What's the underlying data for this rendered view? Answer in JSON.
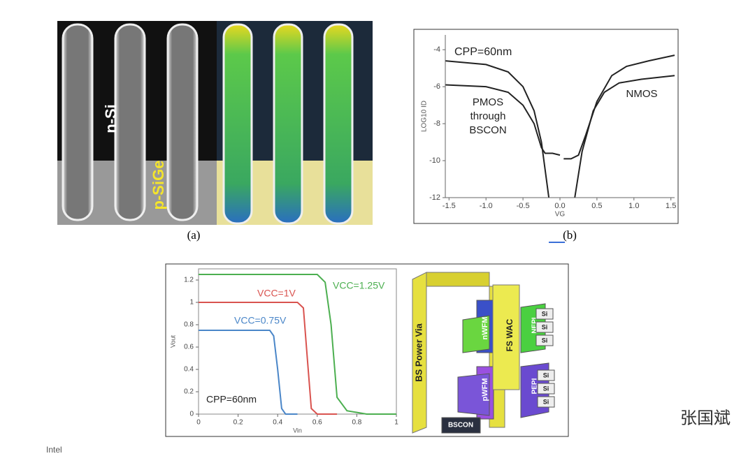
{
  "panel_a": {
    "labels": [
      "n-Si",
      "p-SiGe"
    ],
    "caption": "(a)"
  },
  "panel_b": {
    "caption": "(b)",
    "chart": {
      "type": "line",
      "x_label": "VG",
      "y_label": "LOG10 ID",
      "annotations": [
        "CPP=60nm",
        "PMOS",
        "through",
        "BSCON",
        "NMOS"
      ],
      "xlim": [
        -1.55,
        1.55
      ],
      "ylim": [
        -12,
        -3.2
      ],
      "xticks": [
        -1.5,
        {
          "value": -1,
          "label": "-1.0"
        },
        -0.5,
        {
          "value": 0,
          "label": "0.0"
        },
        0.5,
        {
          "value": 1,
          "label": "1.0"
        },
        1.5
      ],
      "yticks": [
        -4,
        -6,
        -8,
        -10,
        -12
      ],
      "series": [
        {
          "color": "#222222",
          "x": [
            -1.55,
            -1.0,
            -0.7,
            -0.5,
            -0.35,
            -0.25,
            -0.15,
            0.0,
            0.2,
            0.3,
            0.45,
            0.6,
            0.8,
            1.1,
            1.55
          ],
          "values": [
            -4.6,
            -4.8,
            -5.2,
            -6.0,
            -7.3,
            -9.0,
            -12,
            null,
            -12,
            -9.5,
            -7.3,
            -6.3,
            -5.8,
            -5.6,
            -5.4
          ]
        },
        {
          "color": "#222222",
          "x": [
            -1.55,
            -1.0,
            -0.7,
            -0.5,
            -0.35,
            -0.25,
            -0.2,
            -0.1,
            0.0,
            0.02,
            0.05,
            0.15,
            0.25,
            0.35,
            0.5,
            0.7,
            0.9,
            1.2,
            1.55
          ],
          "values": [
            -5.9,
            -6.0,
            -6.3,
            -7.0,
            -8.0,
            -9.3,
            -9.6,
            -9.6,
            -9.7,
            null,
            -9.9,
            -9.9,
            -9.7,
            -8.6,
            -6.8,
            -5.4,
            -4.9,
            -4.6,
            -4.3
          ]
        }
      ]
    }
  },
  "panel_c": {
    "chart": {
      "type": "line",
      "x_label": "Vin",
      "y_label": "Vout",
      "annotations": [
        "CPP=60nm"
      ],
      "xlim": [
        0,
        1
      ],
      "ylim": [
        0,
        1.3
      ],
      "xticks": [
        0,
        0.2,
        0.4,
        0.6,
        0.8,
        1
      ],
      "yticks": [
        0,
        0.2,
        0.4,
        0.6,
        0.8,
        1,
        1.2
      ],
      "series": [
        {
          "name": "VCC=0.75V",
          "color": "#4a86c8",
          "x": [
            0,
            0.36,
            0.38,
            0.4,
            0.42,
            0.44,
            0.5
          ],
          "values": [
            0.75,
            0.75,
            0.7,
            0.4,
            0.05,
            0,
            0
          ]
        },
        {
          "name": "VCC=1V",
          "color": "#d9534f",
          "x": [
            0,
            0.5,
            0.53,
            0.55,
            0.57,
            0.6,
            0.7
          ],
          "values": [
            1,
            1,
            0.95,
            0.5,
            0.05,
            0,
            0
          ]
        },
        {
          "name": "VCC=1.25V",
          "color": "#4caf50",
          "x": [
            0,
            0.6,
            0.64,
            0.67,
            0.7,
            0.75,
            0.85,
            1
          ],
          "values": [
            1.25,
            1.25,
            1.18,
            0.8,
            0.15,
            0.03,
            0,
            0
          ]
        }
      ]
    },
    "diagram": {
      "labels": [
        "BS Power Via",
        "FS WAC",
        "nWFM",
        "pWFM",
        "NEPI",
        "PEPI",
        "BSCON"
      ],
      "si": [
        "Si",
        "Si",
        "Si",
        "Si",
        "Si",
        "Si"
      ]
    }
  },
  "watermark": "张国斌",
  "footer": "Intel"
}
